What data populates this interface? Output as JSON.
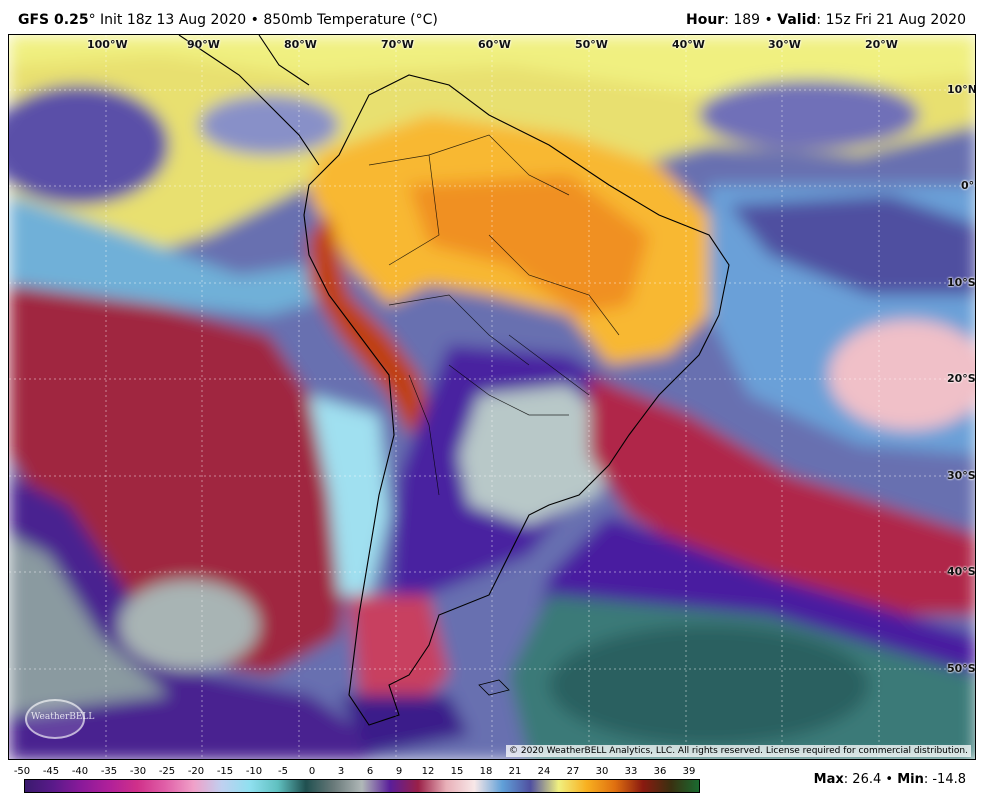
{
  "header": {
    "model": "GFS 0.25",
    "degree": "°",
    "init": " Init 18z 13 Aug 2020",
    "bullet": " • ",
    "field": "850mb Temperature (°C)",
    "hour_label": "Hour",
    "hour_value": ": 189",
    "valid_label": "Valid",
    "valid_value": ": 15z Fri 21 Aug 2020"
  },
  "map": {
    "lon_labels": [
      "100°W",
      "90°W",
      "80°W",
      "70°W",
      "60°W",
      "50°W",
      "40°W",
      "30°W",
      "20°W"
    ],
    "lat_labels": [
      "10°N",
      "0°",
      "10°S",
      "20°S",
      "30°S",
      "40°S",
      "50°S"
    ],
    "copyright": "© 2020 WeatherBELL Analytics, LLC. All rights reserved. License required for commercial distribution.",
    "logo_text": "WeatherBELL"
  },
  "scale": {
    "ticks": [
      "-50",
      "-45",
      "-40",
      "-35",
      "-30",
      "-25",
      "-20",
      "-15",
      "-10",
      "-5",
      "0",
      "3",
      "6",
      "9",
      "12",
      "15",
      "18",
      "21",
      "24",
      "27",
      "30",
      "33",
      "36",
      "39"
    ],
    "colors": [
      "#3a1a6e",
      "#5a1a8a",
      "#8a1a9a",
      "#b0209a",
      "#d0308a",
      "#e060a8",
      "#f0a0c8",
      "#c0d0f0",
      "#90e0f0",
      "#60c0c0",
      "#205050",
      "#6a7a7a",
      "#b0b8b8",
      "#5a1e9a",
      "#9a2048",
      "#e8b0b8",
      "#f8e8e8",
      "#60a0d8",
      "#5050a0",
      "#f0f080",
      "#f8b020",
      "#e07010",
      "#8a1a10",
      "#3a3010",
      "#1a6a30"
    ]
  },
  "stats": {
    "max_label": "Max",
    "max_value": ": 26.4",
    "bullet": " • ",
    "min_label": "Min",
    "min_value": ": -14.8"
  }
}
